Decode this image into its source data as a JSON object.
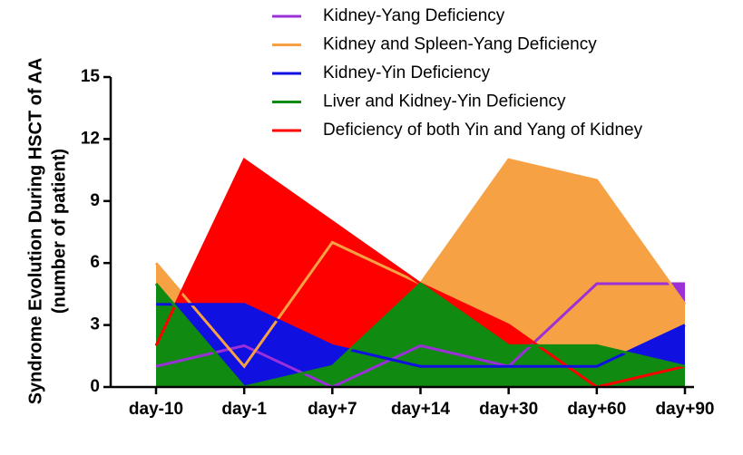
{
  "chart_data": {
    "type": "area",
    "ylabel": [
      "Syndrome Evolution During HSCT of AA",
      "(number of patient)"
    ],
    "categories": [
      "day-10",
      "day-1",
      "day+7",
      "day+14",
      "day+30",
      "day+60",
      "day+90"
    ],
    "ylim": [
      0,
      15
    ],
    "yticks": [
      0,
      3,
      6,
      9,
      12,
      15
    ],
    "series": [
      {
        "name": "Kidney-Yang Deficiency",
        "color": "#9b30d9",
        "values": [
          1,
          2,
          0,
          2,
          1,
          5,
          5
        ]
      },
      {
        "name": "Kidney and Spleen-Yang Deficiency",
        "color": "#f7a145",
        "values": [
          6,
          1,
          7,
          5,
          11,
          10,
          4
        ]
      },
      {
        "name": "Kidney-Yin Deficiency",
        "color": "#1010e0",
        "values": [
          4,
          4,
          2,
          1,
          1,
          1,
          3
        ]
      },
      {
        "name": "Liver and Kidney-Yin Deficiency",
        "color": "#118a11",
        "values": [
          5,
          0,
          1,
          5,
          2,
          2,
          1
        ]
      },
      {
        "name": "Deficiency of both Yin and Yang of Kidney",
        "color": "#ff0000",
        "values": [
          2,
          11,
          8,
          5,
          3,
          0,
          1
        ]
      }
    ]
  }
}
